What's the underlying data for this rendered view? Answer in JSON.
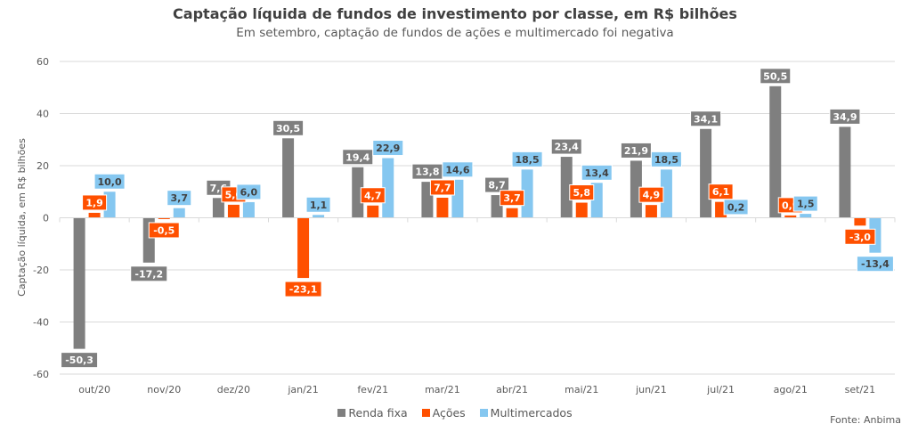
{
  "chart_data": {
    "type": "bar",
    "title": "Captação líquida de fundos de investimento por classe, em R$ bilhões",
    "subtitle": "Em setembro, captação de fundos de ações e multimercado foi negativa",
    "xlabel": "",
    "ylabel": "Captação líquida, em R$ bilhões",
    "ylim": [
      -60,
      60
    ],
    "yticks": [
      60,
      40,
      20,
      0,
      -20,
      -40,
      -60
    ],
    "grid": true,
    "legend_position": "bottom",
    "categories": [
      "out/20",
      "nov/20",
      "dez/20",
      "jan/21",
      "fev/21",
      "mar/21",
      "abr/21",
      "mai/21",
      "jun/21",
      "jul/21",
      "ago/21",
      "set/21"
    ],
    "series": [
      {
        "name": "Renda fixa",
        "color": "#7f7f7f",
        "label_text_color": "#ffffff",
        "values": [
          -50.3,
          -17.2,
          7.6,
          30.5,
          19.4,
          13.8,
          8.7,
          23.4,
          21.9,
          34.1,
          50.5,
          34.9
        ]
      },
      {
        "name": "Ações",
        "color": "#ff5000",
        "label_text_color": "#ffffff",
        "values": [
          1.9,
          -0.5,
          5.0,
          -23.1,
          4.7,
          7.7,
          3.7,
          5.8,
          4.9,
          6.1,
          0.9,
          -3.0
        ]
      },
      {
        "name": "Multimercados",
        "color": "#85c7f0",
        "label_text_color": "#404040",
        "values": [
          10.0,
          3.7,
          6.0,
          1.1,
          22.9,
          14.6,
          18.5,
          13.4,
          18.5,
          0.2,
          1.5,
          -13.4
        ]
      }
    ],
    "source": "Fonte: Anbima"
  }
}
